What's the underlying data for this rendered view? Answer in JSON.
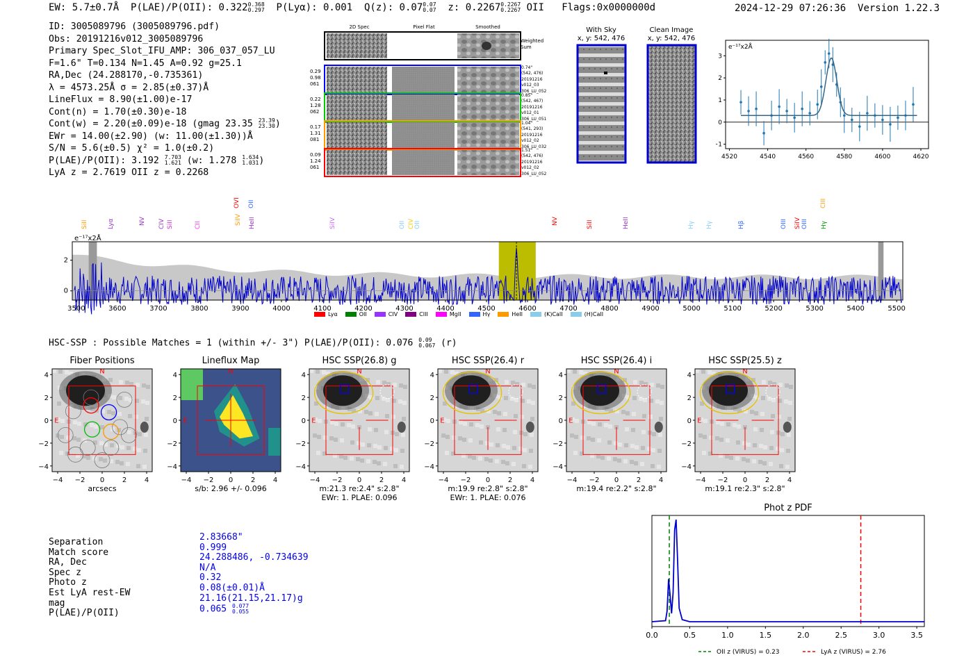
{
  "header": {
    "ew": "EW: 5.7±0.7Å",
    "plae_label": "P(LAE)/P(OII): 0.322",
    "plae_sup": "0.368",
    "plae_sub": "0.297",
    "plya": "P(Lyα): 0.001",
    "qz_label": "Q(z): 0.07",
    "qz_sup": "0.07",
    "qz_sub": "0.07",
    "z_label": "z: 0.2267",
    "z_sup": "0.2267",
    "z_sub": "0.2267",
    "z_line": "OII",
    "flags": "Flags:0x0000000d",
    "timestamp": "2024-12-29 07:26:36",
    "version": "Version 1.22.3"
  },
  "info": {
    "id": "ID: 3005089796 (3005089796.pdf)",
    "obs": "Obs: 20191216v012_3005089796",
    "primary": "Primary Spec_Slot_IFU_AMP: 306_037_057_LU",
    "params": "F=1.6\"  T=0.134  N=1.45  A=0.92  g=25.1",
    "radec": "RA,Dec (24.288170,-0.735361)",
    "lambda": "λ = 4573.25Å   σ = 2.85(±0.37)Å",
    "lineflux": "LineFlux = 8.90(±1.00)e-17",
    "contn": "Cont(n) = 1.70(±0.30)e-18",
    "contw": "Cont(w) = 2.20(±0.09)e-18 (gmag 23.35",
    "contw_sup": "23.39",
    "contw_sub": "23.30",
    "contw_end": ")",
    "ewr": "EWr = 14.00(±2.90) (w: 11.00(±1.30))Å",
    "sn": "S/N = 5.6(±0.5)  χ² = 1.0(±0.2)",
    "plae": "P(LAE)/P(OII): 3.192",
    "plae_sup": "7.703",
    "plae_sub": "1.621",
    "plae_w": "(w: 1.278",
    "plae_w_sup": "1.634",
    "plae_w_sub": "1.031",
    "plae_w_end": ")",
    "lyaz": "LyA z = 2.7619   OII z = 0.2268"
  },
  "cutouts": {
    "col_headers": [
      "2D Spec",
      "Pixel Flat",
      "Smoothed"
    ],
    "weighted": "Weighted Sum",
    "rows": [
      {
        "left": [
          "0.29",
          "0.98",
          "061"
        ],
        "right": [
          "0.74\"",
          "(542, 476)",
          "20191216",
          "v012_03",
          "306_LU_052"
        ],
        "color": "#0000ff"
      },
      {
        "left": [
          "0.22",
          "1.28",
          "062"
        ],
        "right": [
          "0.85\"",
          "(542, 467)",
          "20191216",
          "v012_01",
          "306_LU_051"
        ],
        "color": "#00cc00"
      },
      {
        "left": [
          "0.17",
          "1.31",
          "081"
        ],
        "right": [
          "1.04\"",
          "(541, 293)",
          "20191216",
          "v012_02",
          "306_LU_032"
        ],
        "color": "#ff9900"
      },
      {
        "left": [
          "0.09",
          "1.24",
          "061"
        ],
        "right": [
          "1.51\"",
          "(542, 476)",
          "20191216",
          "v012_02",
          "306_LU_052"
        ],
        "color": "#ff0000"
      }
    ],
    "with_sky_title": "With Sky",
    "with_sky_coords": "x, y: 542, 476",
    "clean_title": "Clean Image",
    "clean_coords": "x, y: 542, 476"
  },
  "zoom_plot": {
    "ylabel": "e⁻¹⁷x2Å",
    "x_ticks": [
      "4520",
      "4540",
      "4560",
      "4580",
      "4600",
      "4620"
    ],
    "y_ticks": [
      "3",
      "2",
      "1",
      "0",
      "−1"
    ]
  },
  "full_spectrum": {
    "ylabel": "e⁻¹⁷x2Å",
    "y_ticks": [
      "2",
      "0"
    ],
    "x_ticks": [
      "3500",
      "3600",
      "3700",
      "3800",
      "3900",
      "4000",
      "4100",
      "4200",
      "4300",
      "4400",
      "4500",
      "4600",
      "4700",
      "4800",
      "4900",
      "5000",
      "5100",
      "5200",
      "5300",
      "5400",
      "5500"
    ],
    "line_labels": [
      {
        "text": "SiII",
        "color": "#ff9900"
      },
      {
        "text": "Lyα",
        "color": "#9933cc"
      },
      {
        "text": "NV",
        "color": "#9933cc"
      },
      {
        "text": "CIV",
        "color": "#9933cc"
      },
      {
        "text": "SiII",
        "color": "#cc33cc"
      },
      {
        "text": "CII",
        "color": "#ff33ff"
      },
      {
        "text": "SiIV",
        "color": "#ff9900"
      },
      {
        "text": "OVI",
        "color": "#ff0000"
      },
      {
        "text": "OII",
        "color": "#3366ff"
      },
      {
        "text": "HeII",
        "color": "#9933cc"
      },
      {
        "text": "SiIV",
        "color": "#cc66ff"
      },
      {
        "text": "OII",
        "color": "#88ccff"
      },
      {
        "text": "CIV",
        "color": "#ffcc00"
      },
      {
        "text": "OII",
        "color": "#88ccff"
      },
      {
        "text": "NV",
        "color": "#ff0000"
      },
      {
        "text": "SiII",
        "color": "#ff0000"
      },
      {
        "text": "HeII",
        "color": "#9933cc"
      },
      {
        "text": "Hγ",
        "color": "#88ccff"
      },
      {
        "text": "Hγ",
        "color": "#88ccff"
      },
      {
        "text": "Hβ",
        "color": "#3366ff"
      },
      {
        "text": "OIII",
        "color": "#3366ff"
      },
      {
        "text": "SiIV",
        "color": "#ff0000"
      },
      {
        "text": "OIII",
        "color": "#3366ff"
      },
      {
        "text": "CIII",
        "color": "#ff9900"
      },
      {
        "text": "Hγ",
        "color": "#009900"
      }
    ],
    "legend": [
      {
        "name": "Lyα",
        "color": "#ff0000"
      },
      {
        "name": "OII",
        "color": "#008000"
      },
      {
        "name": "CIV",
        "color": "#9933ff"
      },
      {
        "name": "CIII",
        "color": "#800080"
      },
      {
        "name": "MgII",
        "color": "#ff00ff"
      },
      {
        "name": "Hγ",
        "color": "#3366ff"
      },
      {
        "name": "HeII",
        "color": "#ff9900"
      },
      {
        "name": "(K)CaII",
        "color": "#88ccee"
      },
      {
        "name": "(H)CaII",
        "color": "#88ccee"
      }
    ]
  },
  "hsc": {
    "summary": "HSC-SSP : Possible Matches = 1 (within +/- 3\")  P(LAE)/P(OII): 0.076",
    "summary_sup": "0.09",
    "summary_sub": "0.067",
    "summary_end": "(r)",
    "panels": [
      {
        "title": "Fiber Positions",
        "sub1": "arcsecs",
        "sub2": ""
      },
      {
        "title": "Lineflux Map",
        "sub1": "s/b: 2.96 +/- 0.096",
        "sub2": ""
      },
      {
        "title": "HSC SSP(26.8) g",
        "sub1": "m:21.3  re:2.4\"  s:2.8\"",
        "sub2": "EWr: 1. PLAE: 0.096"
      },
      {
        "title": "HSC SSP(26.4) r",
        "sub1": "m:19.9  re:2.8\"  s:2.8\"",
        "sub2": "EWr: 1. PLAE: 0.076"
      },
      {
        "title": "HSC SSP(26.4) i",
        "sub1": "m:19.4  re:2.2\"  s:2.8\"",
        "sub2": ""
      },
      {
        "title": "HSC SSP(25.5) z",
        "sub1": "m:19.1  re:2.3\"  s:2.8\"",
        "sub2": ""
      }
    ],
    "axis_ticks_y": [
      "4",
      "2",
      "0",
      "−2",
      "−4"
    ],
    "axis_ticks_x": [
      "−4",
      "−2",
      "0",
      "2",
      "4"
    ],
    "compass_n": "N",
    "compass_e": "E"
  },
  "match_table": {
    "labels": [
      "Separation",
      "Match score",
      "RA, Dec",
      "Spec z",
      "Photo z",
      "Est LyA rest-EW",
      "mag",
      "P(LAE)/P(OII)"
    ],
    "values": [
      "2.83668\"",
      "0.999",
      "24.288486, -0.734639",
      "N/A",
      "0.32",
      "0.08(±0.01)Å",
      "21.16(21.15,21.17)g",
      "0.065"
    ],
    "plae_sup": "0.077",
    "plae_sub": "0.055"
  },
  "chart_data": [
    {
      "type": "line",
      "title": "",
      "xlabel": "",
      "ylabel": "e-17x2Å",
      "xlim": [
        4518,
        4624
      ],
      "ylim": [
        -1.2,
        3.7
      ],
      "series": [
        {
          "name": "data",
          "x": [
            4526,
            4530,
            4534,
            4538,
            4542,
            4546,
            4550,
            4554,
            4558,
            4562,
            4566,
            4568,
            4570,
            4572,
            4574,
            4576,
            4578,
            4580,
            4584,
            4588,
            4592,
            4596,
            4600,
            4604,
            4608,
            4612,
            4616
          ],
          "values": [
            0.9,
            0.5,
            0.6,
            -0.5,
            0.3,
            0.7,
            0.5,
            0.2,
            0.6,
            0.4,
            0.8,
            1.6,
            2.7,
            3.1,
            2.6,
            1.7,
            0.9,
            0.3,
            0.1,
            -0.2,
            0.4,
            0.3,
            0.1,
            -0.1,
            0.2,
            0.3,
            0.8
          ]
        },
        {
          "name": "gaussian fit",
          "x_center": 4573.25,
          "sigma": 2.85,
          "amplitude": 2.6,
          "continuum": 0.3
        }
      ]
    },
    {
      "type": "line",
      "title": "",
      "xlabel": "",
      "ylabel": "e-17x2Å",
      "xlim": [
        3490,
        5515
      ],
      "ylim": [
        -0.6,
        3.2
      ],
      "highlight_range": [
        4530,
        4620
      ],
      "marker_x": 4573
    },
    {
      "type": "line",
      "title": "Phot z PDF",
      "xlabel": "",
      "ylabel": "",
      "xlim": [
        0.0,
        3.6
      ],
      "x_ticks": [
        "0.0",
        "0.5",
        "1.0",
        "1.5",
        "2.0",
        "2.5",
        "3.0",
        "3.5"
      ],
      "series": [
        {
          "name": "pdf",
          "x": [
            0.0,
            0.18,
            0.2,
            0.22,
            0.24,
            0.26,
            0.28,
            0.3,
            0.32,
            0.34,
            0.36,
            0.4,
            0.5,
            1.0,
            2.0,
            3.6
          ],
          "values": [
            0.02,
            0.03,
            0.12,
            0.43,
            0.28,
            0.1,
            0.3,
            0.9,
            1.0,
            0.6,
            0.15,
            0.04,
            0.02,
            0.02,
            0.02,
            0.02
          ]
        }
      ],
      "vlines": [
        {
          "x": 0.23,
          "label": "OII z (VIRUS) = 0.23",
          "color": "#008000"
        },
        {
          "x": 2.76,
          "label": "LyA z (VIRUS) = 2.76",
          "color": "#ff0000"
        }
      ]
    }
  ]
}
